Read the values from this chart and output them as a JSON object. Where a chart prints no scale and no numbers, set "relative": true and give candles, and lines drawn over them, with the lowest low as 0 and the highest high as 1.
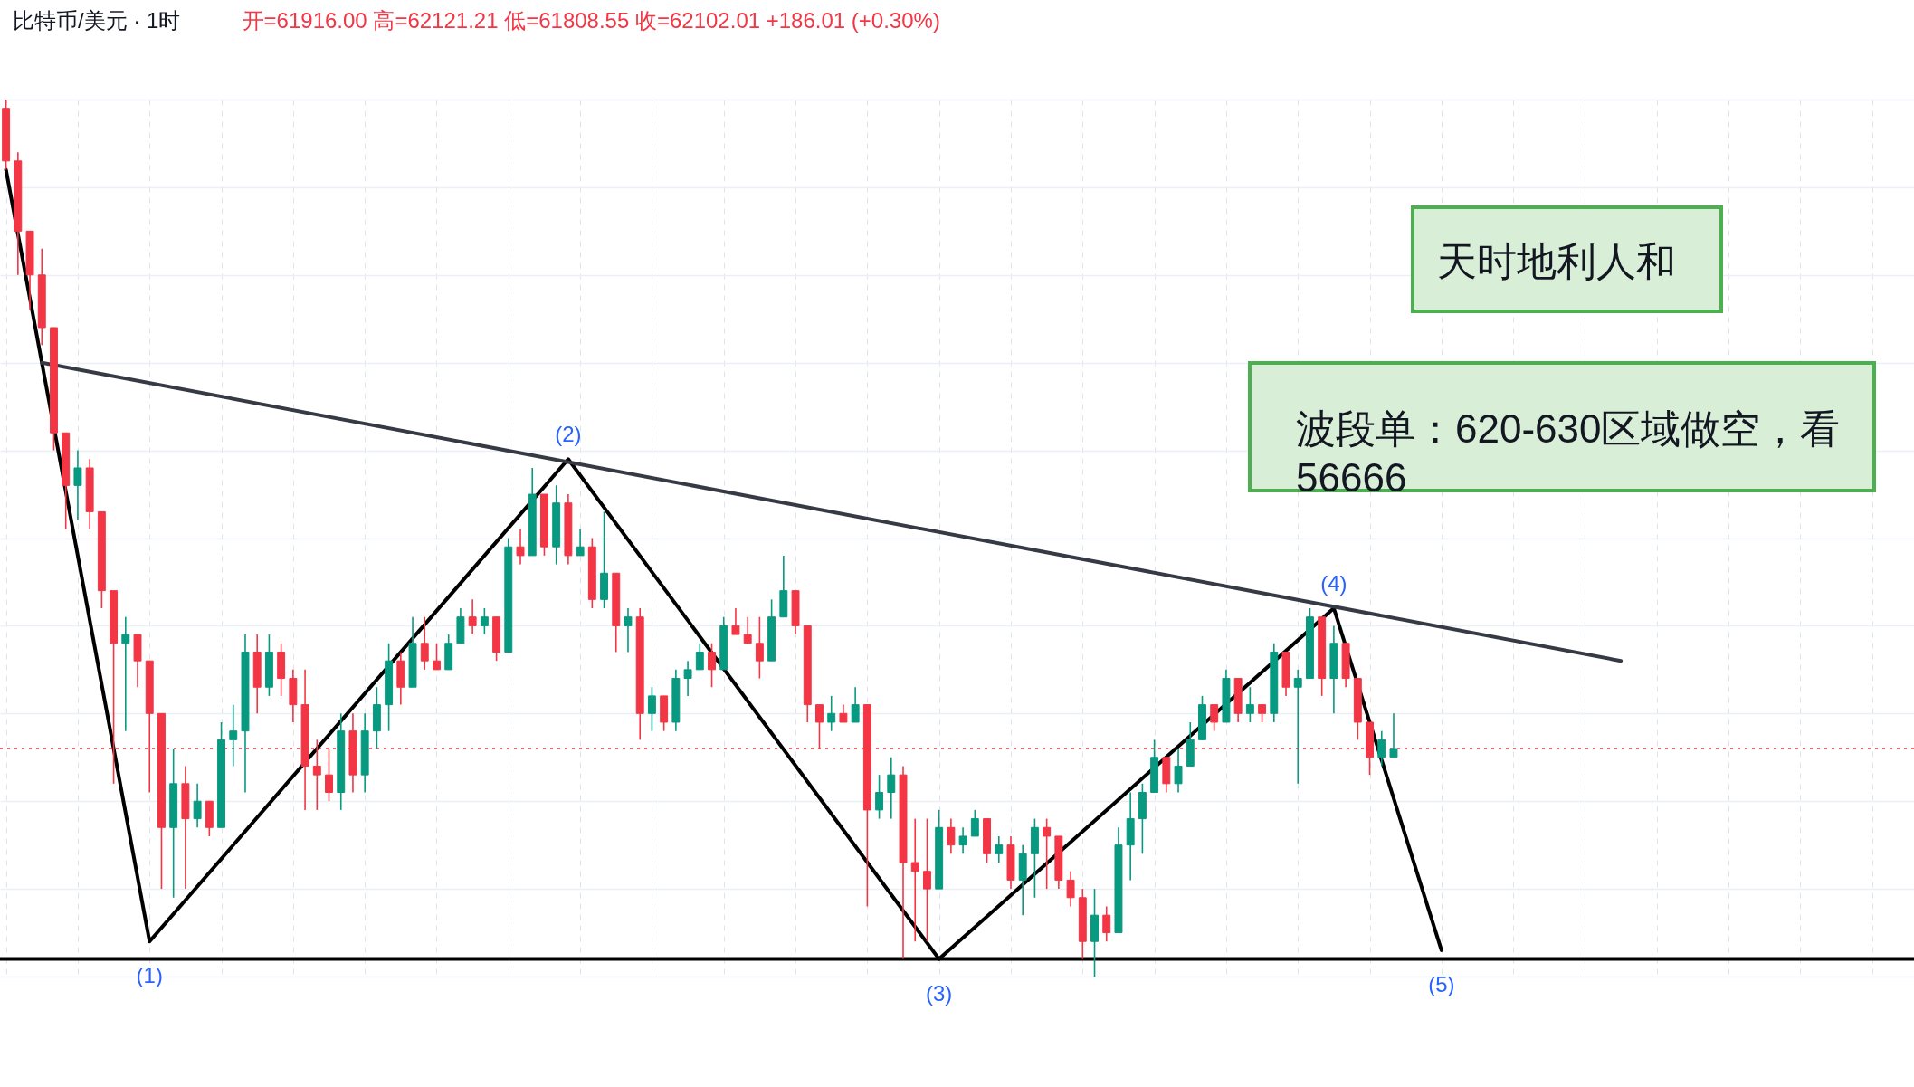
{
  "chart_data": {
    "type": "candlestick",
    "title": "比特币/美元 · 1时",
    "subtitle": "开=61916.00 高=62121.21 低=61808.55 收=62102.01 +186.01 (+0.30%)",
    "relative": true,
    "grid": true,
    "tick_labels": false,
    "categories": [
      null,
      null,
      null,
      null,
      null,
      null,
      null,
      null,
      null,
      null,
      null,
      null,
      null,
      null,
      null,
      null,
      null,
      null,
      null,
      null,
      null,
      null,
      null,
      null,
      null,
      null,
      null,
      null,
      null,
      null,
      null,
      null,
      null,
      null,
      null,
      null,
      null,
      null,
      null,
      null,
      null,
      null,
      null,
      null,
      null,
      null,
      null,
      null,
      null,
      null,
      null,
      null,
      null,
      null,
      null,
      null,
      null,
      null,
      null,
      null,
      null,
      null,
      null,
      null,
      null,
      null,
      null,
      null,
      null,
      null,
      null,
      null,
      null,
      null,
      null,
      null,
      null,
      null,
      null,
      null,
      null,
      null,
      null,
      null,
      null,
      null,
      null,
      null,
      null,
      null,
      null,
      null,
      null,
      null,
      null,
      null,
      null,
      null,
      null,
      null,
      null,
      null,
      null,
      null,
      null,
      null,
      null,
      null,
      null,
      null,
      null,
      null,
      null,
      null,
      null,
      null,
      null,
      null,
      null,
      null,
      null,
      null,
      null,
      null,
      null,
      null,
      null,
      null,
      null,
      null,
      null,
      null,
      null,
      null,
      null,
      null,
      null,
      null,
      null,
      null,
      null,
      null,
      null,
      null,
      null,
      null,
      null,
      null,
      null,
      null,
      null,
      null,
      null,
      null,
      null,
      null,
      null,
      null,
      null,
      null
    ],
    "ohlc": [
      [
        0.99,
        1,
        0.92,
        0.93
      ],
      [
        0.93,
        0.94,
        0.8,
        0.85
      ],
      [
        0.85,
        0.85,
        0.76,
        0.8
      ],
      [
        0.8,
        0.83,
        0.72,
        0.74
      ],
      [
        0.74,
        0.74,
        0.6,
        0.62
      ],
      [
        0.62,
        0.62,
        0.51,
        0.56
      ],
      [
        0.56,
        0.6,
        0.52,
        0.58
      ],
      [
        0.58,
        0.59,
        0.51,
        0.53
      ],
      [
        0.53,
        0.53,
        0.42,
        0.44
      ],
      [
        0.44,
        0.44,
        0.22,
        0.38
      ],
      [
        0.38,
        0.41,
        0.28,
        0.39
      ],
      [
        0.39,
        0.39,
        0.33,
        0.36
      ],
      [
        0.36,
        0.36,
        0.21,
        0.3
      ],
      [
        0.3,
        0.3,
        0.1,
        0.17
      ],
      [
        0.17,
        0.26,
        0.09,
        0.22
      ],
      [
        0.22,
        0.24,
        0.1,
        0.18
      ],
      [
        0.18,
        0.22,
        0.17,
        0.2
      ],
      [
        0.2,
        0.2,
        0.16,
        0.17
      ],
      [
        0.17,
        0.29,
        0.17,
        0.27
      ],
      [
        0.27,
        0.31,
        0.24,
        0.28
      ],
      [
        0.28,
        0.39,
        0.21,
        0.37
      ],
      [
        0.37,
        0.39,
        0.3,
        0.33
      ],
      [
        0.33,
        0.39,
        0.32,
        0.37
      ],
      [
        0.37,
        0.38,
        0.32,
        0.34
      ],
      [
        0.34,
        0.35,
        0.29,
        0.31
      ],
      [
        0.31,
        0.35,
        0.19,
        0.24
      ],
      [
        0.24,
        0.27,
        0.19,
        0.23
      ],
      [
        0.23,
        0.26,
        0.2,
        0.21
      ],
      [
        0.21,
        0.3,
        0.19,
        0.28
      ],
      [
        0.28,
        0.3,
        0.21,
        0.23
      ],
      [
        0.23,
        0.3,
        0.21,
        0.28
      ],
      [
        0.28,
        0.33,
        0.26,
        0.31
      ],
      [
        0.31,
        0.38,
        0.28,
        0.36
      ],
      [
        0.36,
        0.37,
        0.31,
        0.33
      ],
      [
        0.33,
        0.41,
        0.33,
        0.38
      ],
      [
        0.38,
        0.41,
        0.35,
        0.36
      ],
      [
        0.36,
        0.38,
        0.35,
        0.35
      ],
      [
        0.35,
        0.39,
        0.35,
        0.38
      ],
      [
        0.38,
        0.42,
        0.38,
        0.41
      ],
      [
        0.41,
        0.43,
        0.39,
        0.4
      ],
      [
        0.4,
        0.42,
        0.39,
        0.41
      ],
      [
        0.41,
        0.41,
        0.36,
        0.37
      ],
      [
        0.37,
        0.5,
        0.37,
        0.49
      ],
      [
        0.49,
        0.51,
        0.47,
        0.48
      ],
      [
        0.48,
        0.58,
        0.48,
        0.55
      ],
      [
        0.55,
        0.55,
        0.48,
        0.49
      ],
      [
        0.49,
        0.56,
        0.47,
        0.54
      ],
      [
        0.54,
        0.55,
        0.47,
        0.48
      ],
      [
        0.48,
        0.51,
        0.48,
        0.49
      ],
      [
        0.49,
        0.5,
        0.42,
        0.43
      ],
      [
        0.43,
        0.53,
        0.42,
        0.46
      ],
      [
        0.46,
        0.46,
        0.37,
        0.4
      ],
      [
        0.4,
        0.42,
        0.37,
        0.41
      ],
      [
        0.41,
        0.42,
        0.27,
        0.3
      ],
      [
        0.3,
        0.33,
        0.28,
        0.32
      ],
      [
        0.32,
        0.32,
        0.28,
        0.29
      ],
      [
        0.29,
        0.35,
        0.28,
        0.34
      ],
      [
        0.34,
        0.36,
        0.32,
        0.35
      ],
      [
        0.35,
        0.38,
        0.35,
        0.37
      ],
      [
        0.37,
        0.38,
        0.33,
        0.35
      ],
      [
        0.35,
        0.41,
        0.35,
        0.4
      ],
      [
        0.4,
        0.42,
        0.39,
        0.39
      ],
      [
        0.39,
        0.41,
        0.38,
        0.38
      ],
      [
        0.38,
        0.41,
        0.34,
        0.36
      ],
      [
        0.36,
        0.43,
        0.36,
        0.41
      ],
      [
        0.41,
        0.48,
        0.41,
        0.44
      ],
      [
        0.44,
        0.44,
        0.39,
        0.4
      ],
      [
        0.4,
        0.4,
        0.29,
        0.31
      ],
      [
        0.31,
        0.31,
        0.26,
        0.29
      ],
      [
        0.29,
        0.32,
        0.28,
        0.3
      ],
      [
        0.3,
        0.31,
        0.29,
        0.29
      ],
      [
        0.29,
        0.33,
        0.29,
        0.31
      ],
      [
        0.31,
        0.31,
        0.08,
        0.19
      ],
      [
        0.19,
        0.23,
        0.18,
        0.21
      ],
      [
        0.21,
        0.25,
        0.18,
        0.23
      ],
      [
        0.23,
        0.24,
        0.02,
        0.13
      ],
      [
        0.13,
        0.18,
        0.04,
        0.12
      ],
      [
        0.12,
        0.18,
        0.04,
        0.1
      ],
      [
        0.1,
        0.19,
        0.1,
        0.17
      ],
      [
        0.17,
        0.18,
        0.14,
        0.15
      ],
      [
        0.15,
        0.17,
        0.14,
        0.16
      ],
      [
        0.16,
        0.19,
        0.16,
        0.18
      ],
      [
        0.18,
        0.18,
        0.13,
        0.14
      ],
      [
        0.14,
        0.16,
        0.13,
        0.15
      ],
      [
        0.15,
        0.16,
        0.1,
        0.11
      ],
      [
        0.11,
        0.15,
        0.07,
        0.14
      ],
      [
        0.14,
        0.18,
        0.09,
        0.17
      ],
      [
        0.17,
        0.18,
        0.1,
        0.16
      ],
      [
        0.16,
        0.16,
        0.1,
        0.11
      ],
      [
        0.11,
        0.12,
        0.08,
        0.09
      ],
      [
        0.09,
        0.1,
        0.02,
        0.04
      ],
      [
        0.04,
        0.1,
        0,
        0.07
      ],
      [
        0.07,
        0.08,
        0.04,
        0.05
      ],
      [
        0.05,
        0.17,
        0.05,
        0.15
      ],
      [
        0.15,
        0.21,
        0.11,
        0.18
      ],
      [
        0.18,
        0.22,
        0.14,
        0.21
      ],
      [
        0.21,
        0.27,
        0.21,
        0.25
      ],
      [
        0.25,
        0.25,
        0.21,
        0.22
      ],
      [
        0.22,
        0.26,
        0.21,
        0.24
      ],
      [
        0.24,
        0.29,
        0.24,
        0.27
      ],
      [
        0.27,
        0.32,
        0.27,
        0.31
      ],
      [
        0.31,
        0.31,
        0.28,
        0.29
      ],
      [
        0.29,
        0.35,
        0.29,
        0.34
      ],
      [
        0.34,
        0.34,
        0.29,
        0.3
      ],
      [
        0.3,
        0.33,
        0.29,
        0.31
      ],
      [
        0.31,
        0.31,
        0.29,
        0.3
      ],
      [
        0.3,
        0.38,
        0.29,
        0.37
      ],
      [
        0.37,
        0.37,
        0.32,
        0.33
      ],
      [
        0.33,
        0.35,
        0.22,
        0.34
      ],
      [
        0.34,
        0.42,
        0.34,
        0.41
      ],
      [
        0.41,
        0.41,
        0.32,
        0.34
      ],
      [
        0.34,
        0.4,
        0.3,
        0.38
      ],
      [
        0.38,
        0.38,
        0.33,
        0.34
      ],
      [
        0.34,
        0.34,
        0.27,
        0.29
      ],
      [
        0.29,
        0.29,
        0.23,
        0.25
      ],
      [
        0.25,
        0.28,
        0.24,
        0.27
      ],
      [
        0.25,
        0.3,
        0.25,
        0.26
      ],
      null,
      null,
      null,
      null,
      null,
      null,
      null,
      null,
      null,
      null,
      null,
      null,
      null,
      null,
      null,
      null,
      null,
      null,
      null,
      null,
      null,
      null,
      null,
      null,
      null,
      null,
      null,
      null,
      null,
      null,
      null,
      null,
      null,
      null,
      null,
      null,
      null,
      null,
      null,
      null,
      null,
      null,
      null
    ],
    "colors": [
      "#f23645",
      "#f23645",
      "#f23645",
      "#f23645",
      "#f23645",
      "#f23645",
      "#089981",
      "#f23645",
      "#f23645",
      "#f23645",
      "#089981",
      "#f23645",
      "#f23645",
      "#f23645",
      "#089981",
      "#f23645",
      "#089981",
      "#f23645",
      "#089981",
      "#089981",
      "#089981",
      "#f23645",
      "#089981",
      "#f23645",
      "#f23645",
      "#f23645",
      "#f23645",
      "#f23645",
      "#089981",
      "#f23645",
      "#089981",
      "#089981",
      "#089981",
      "#f23645",
      "#089981",
      "#f23645",
      "#f23645",
      "#089981",
      "#089981",
      "#f23645",
      "#089981",
      "#f23645",
      "#089981",
      "#f23645",
      "#089981",
      "#f23645",
      "#089981",
      "#f23645",
      "#089981",
      "#f23645",
      "#089981",
      "#f23645",
      "#089981",
      "#f23645",
      "#089981",
      "#f23645",
      "#089981",
      "#089981",
      "#089981",
      "#f23645",
      "#089981",
      "#f23645",
      "#f23645",
      "#f23645",
      "#089981",
      "#089981",
      "#f23645",
      "#f23645",
      "#f23645",
      "#089981",
      "#f23645",
      "#089981",
      "#f23645",
      "#089981",
      "#089981",
      "#f23645",
      "#f23645",
      "#f23645",
      "#089981",
      "#f23645",
      "#089981",
      "#089981",
      "#f23645",
      "#089981",
      "#f23645",
      "#089981",
      "#089981",
      "#f23645",
      "#f23645",
      "#f23645",
      "#f23645",
      "#089981",
      "#f23645",
      "#089981",
      "#089981",
      "#089981",
      "#089981",
      "#f23645",
      "#089981",
      "#089981",
      "#089981",
      "#f23645",
      "#089981",
      "#f23645",
      "#089981",
      "#f23645",
      "#089981",
      "#f23645",
      "#089981",
      "#089981",
      "#f23645",
      "#089981",
      "#f23645",
      "#f23645",
      "#f23645",
      "#089981",
      "#089981",
      null,
      null,
      null,
      null,
      null,
      null,
      null,
      null,
      null,
      null,
      null,
      null,
      null,
      null,
      null,
      null,
      null,
      null,
      null,
      null,
      null,
      null,
      null,
      null,
      null,
      null,
      null,
      null,
      null,
      null,
      null,
      null,
      null,
      null,
      null,
      null,
      null,
      null,
      null,
      null,
      null,
      null,
      null
    ],
    "series": [
      {
        "type": "line",
        "color": "#000000",
        "values": [
          0.92,
          null,
          null,
          null,
          null,
          null,
          null,
          null,
          null,
          null,
          null,
          null,
          0.04,
          null,
          null,
          null,
          null,
          null,
          null,
          null,
          null,
          null,
          null,
          null,
          null,
          null,
          null,
          null,
          null,
          null,
          null,
          null,
          null,
          null,
          null,
          null,
          null,
          null,
          null,
          null,
          null,
          null,
          null,
          null,
          null,
          null,
          null,
          0.59,
          null,
          null,
          null,
          null,
          null,
          null,
          null,
          null,
          null,
          null,
          null,
          null,
          null,
          null,
          null,
          null,
          null,
          null,
          null,
          null,
          null,
          null,
          null,
          null,
          null,
          null,
          null,
          null,
          null,
          null,
          0.02,
          null,
          null,
          null,
          null,
          null,
          null,
          null,
          null,
          null,
          null,
          null,
          null,
          null,
          null,
          null,
          null,
          null,
          null,
          null,
          null,
          null,
          null,
          null,
          null,
          null,
          null,
          null,
          null,
          null,
          null,
          null,
          null,
          0.42,
          null,
          null,
          null,
          null,
          null,
          null,
          null,
          null,
          0.03,
          null,
          null,
          null,
          null,
          null,
          null,
          null,
          null,
          null,
          null,
          null,
          null,
          null,
          null,
          null,
          null,
          null,
          null,
          null,
          null,
          null,
          null,
          null,
          null,
          null,
          null,
          null,
          null,
          null,
          null,
          null,
          null,
          null,
          null,
          null,
          null,
          null,
          null,
          null
        ]
      },
      {
        "type": "line",
        "color": "#363a45",
        "values": [
          null,
          null,
          null,
          0.7,
          null,
          null,
          null,
          null,
          null,
          null,
          null,
          null,
          null,
          null,
          null,
          null,
          null,
          null,
          null,
          null,
          null,
          null,
          null,
          null,
          null,
          null,
          null,
          null,
          null,
          null,
          null,
          null,
          null,
          null,
          null,
          null,
          null,
          null,
          null,
          null,
          null,
          null,
          null,
          null,
          null,
          null,
          null,
          null,
          null,
          null,
          null,
          null,
          null,
          null,
          null,
          null,
          null,
          null,
          null,
          null,
          null,
          null,
          null,
          null,
          null,
          null,
          null,
          null,
          null,
          null,
          null,
          null,
          null,
          null,
          null,
          null,
          null,
          null,
          null,
          null,
          null,
          null,
          null,
          null,
          null,
          null,
          null,
          null,
          null,
          null,
          null,
          null,
          null,
          null,
          null,
          null,
          null,
          null,
          null,
          null,
          null,
          null,
          null,
          null,
          null,
          null,
          null,
          null,
          null,
          null,
          null,
          null,
          null,
          null,
          null,
          null,
          null,
          null,
          null,
          null,
          null,
          null,
          null,
          null,
          null,
          null,
          null,
          null,
          null,
          null,
          null,
          null,
          null,
          null,
          null,
          0.36,
          null,
          null,
          null,
          null,
          null,
          null,
          null,
          null,
          null,
          null,
          null,
          null,
          null,
          null,
          null,
          null,
          null,
          null,
          null,
          null,
          null,
          null,
          null,
          null
        ]
      }
    ],
    "ref_lines": [
      {
        "axis": "y",
        "value": 0.02,
        "color": "#000000"
      },
      {
        "axis": "y",
        "value": 0.26,
        "color": "#f23645",
        "line_style": "dotted"
      }
    ],
    "annotations": [
      "天时地利人和",
      "波段单：620-630区域做空，看56666",
      {
        "text": "(1)",
        "y": 0.04
      },
      {
        "text": "(2)",
        "y": 0.59
      },
      {
        "text": "(3)",
        "y": 0.02
      },
      {
        "text": "(4)",
        "y": 0.42
      },
      {
        "text": "(5)",
        "y": 0.03
      }
    ]
  }
}
